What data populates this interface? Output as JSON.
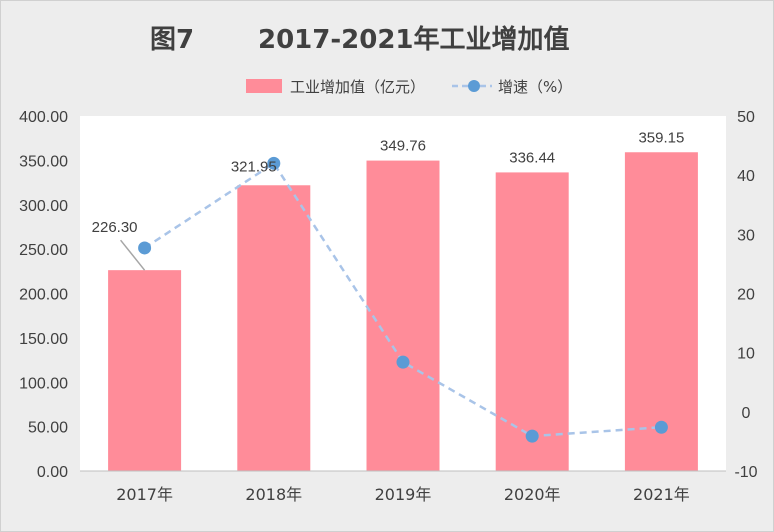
{
  "title_prefix": "图7",
  "title_main": "2017-2021年工业增加值",
  "chart_data": {
    "type": "bar",
    "categories": [
      "2017年",
      "2018年",
      "2019年",
      "2020年",
      "2021年"
    ],
    "series": [
      {
        "name": "工业增加值（亿元）",
        "type": "bar",
        "axis": "left",
        "values": [
          226.3,
          321.95,
          349.76,
          336.44,
          359.15
        ],
        "labels": [
          "226.30",
          "321.95",
          "349.76",
          "336.44",
          "359.15"
        ]
      },
      {
        "name": "增速（%）",
        "type": "line",
        "axis": "right",
        "values": [
          27.7,
          42.0,
          8.4,
          -4.1,
          -2.6
        ]
      }
    ],
    "y_left": {
      "range": [
        0,
        400
      ],
      "ticks": [
        "0.00",
        "50.00",
        "100.00",
        "150.00",
        "200.00",
        "250.00",
        "300.00",
        "350.00",
        "400.00"
      ]
    },
    "y_right": {
      "range": [
        -10,
        50
      ],
      "ticks": [
        "-10",
        "0",
        "10",
        "20",
        "30",
        "40",
        "50"
      ]
    },
    "legend_position": "top",
    "grid": false,
    "colors": {
      "bar": "#ff8c99",
      "line": "#a9c4e8",
      "marker": "#5b9bd5"
    }
  }
}
